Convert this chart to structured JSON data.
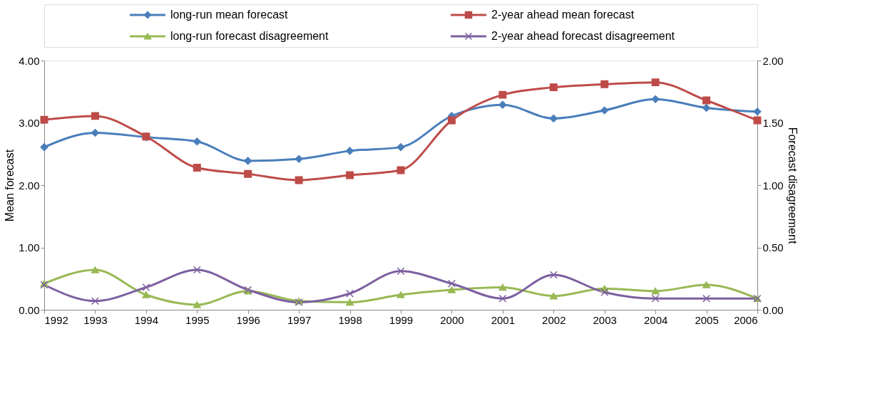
{
  "chart_data": {
    "type": "line",
    "categories": [
      "1992",
      "1993",
      "1994",
      "1995",
      "1996",
      "1997",
      "1998",
      "1999",
      "2000",
      "2001",
      "2002",
      "2003",
      "2004",
      "2005",
      "2006"
    ],
    "series": [
      {
        "name": "long-run mean forecast",
        "color": "#4a7ebb",
        "marker": "diamond",
        "values": [
          2.61,
          2.84,
          2.77,
          2.7,
          2.39,
          2.42,
          2.55,
          2.61,
          3.11,
          3.29,
          3.07,
          3.2,
          3.38,
          3.24,
          3.18
        ]
      },
      {
        "name": "2-year ahead mean forecast",
        "color": "#be4b48",
        "marker": "square",
        "values": [
          3.05,
          3.11,
          2.78,
          2.28,
          2.18,
          2.08,
          2.16,
          2.24,
          3.04,
          3.45,
          3.57,
          3.62,
          3.65,
          3.36,
          3.04
        ]
      },
      {
        "name": "long-run forecast disagreement",
        "color": "#98b954",
        "marker": "triangle",
        "axis": "y2",
        "values": [
          0.21,
          0.32,
          0.12,
          0.04,
          0.15,
          0.07,
          0.06,
          0.12,
          0.16,
          0.18,
          0.11,
          0.17,
          0.15,
          0.2,
          0.09
        ]
      },
      {
        "name": "2-year ahead forecast disagreement",
        "color": "#7d5fa0",
        "marker": "cross",
        "axis": "y2",
        "values": [
          0.2,
          0.07,
          0.18,
          0.32,
          0.16,
          0.06,
          0.13,
          0.31,
          0.21,
          0.09,
          0.28,
          0.14,
          0.09,
          0.09,
          0.09
        ]
      }
    ],
    "ylabel": "Mean forecast",
    "y2label": "Forecast disagreement",
    "ylim": [
      0,
      4
    ],
    "yticks": [
      {
        "value": 0,
        "label": "0.00"
      },
      {
        "value": 1,
        "label": "1.00"
      },
      {
        "value": 2,
        "label": "2.00"
      },
      {
        "value": 3,
        "label": "3.00"
      },
      {
        "value": 4,
        "label": "4.00"
      }
    ],
    "y2lim": [
      0,
      2
    ],
    "y2ticks": [
      {
        "value": 0,
        "label": "0.00"
      },
      {
        "value": 0.5,
        "label": "0.50"
      },
      {
        "value": 1,
        "label": "1.00"
      },
      {
        "value": 1.5,
        "label": "1.50"
      },
      {
        "value": 2,
        "label": "2.00"
      }
    ],
    "grid": false,
    "legend": "top",
    "line_style": "solid"
  }
}
